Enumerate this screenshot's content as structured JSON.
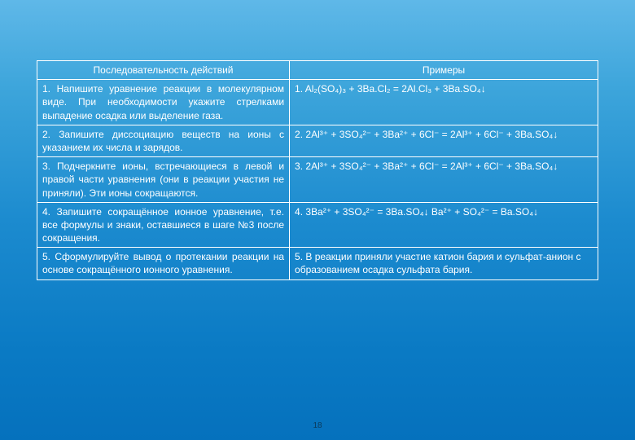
{
  "headers": {
    "col1": "Последовательность действий",
    "col2": "Примеры"
  },
  "rows": [
    {
      "action": "1. Напишите уравнение реакции в молекулярном виде. При необходимости укажите стрелками выпадение осадка или выделение газа.",
      "example": "1. Al₂(SO₄)₃ + 3Ba.Cl₂ = 2Al.Cl₃ + 3Ba.SO₄↓"
    },
    {
      "action": "2. Запишите диссоциацию веществ на ионы с указанием их числа и зарядов.",
      "example": "2. 2Al³⁺ + 3SO₄²⁻ + 3Ba²⁺ + 6Cl⁻ = 2Al³⁺ + 6Cl⁻ + 3Ba.SO₄↓"
    },
    {
      "action": "3. Подчеркните ионы, встречающиеся в левой и правой части уравнения (они в реакции участия не приняли). Эти ионы сокращаются.",
      "example": "3. 2Al³⁺ + 3SO₄²⁻ + 3Ba²⁺ + 6Cl⁻ = 2Al³⁺ + 6Cl⁻ + 3Ba.SO₄↓"
    },
    {
      "action": "4. Запишите сокращённое ионное уравнение, т.е. все формулы и знаки, оставшиеся в шаге №3 после сокращения.",
      "example": "4. 3Ba²⁺ + 3SO₄²⁻ = 3Ba.SO₄↓\n    Ba²⁺ + SO₄²⁻ = Ba.SO₄↓"
    },
    {
      "action": "5. Сформулируйте вывод о протекании реакции на основе сокращённого ионного уравнения.",
      "example": "5. В реакции приняли участие катион бария и сульфат-анион с образованием осадка сульфата бария."
    }
  ],
  "pageNumber": "18",
  "style": {
    "border_color": "#ffffff",
    "text_color": "#ffffff",
    "font_size": 12,
    "bg_gradient_top": "#5fb8e8",
    "bg_gradient_bottom": "#0571bd"
  }
}
